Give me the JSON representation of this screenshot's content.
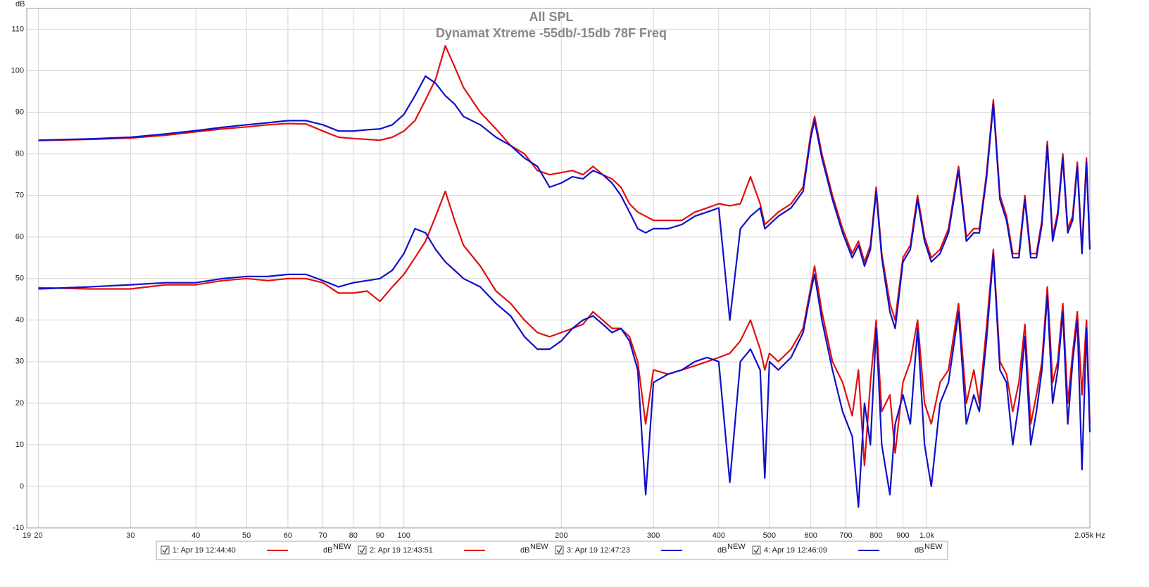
{
  "chart_data": {
    "type": "line",
    "title": "All SPL",
    "subtitle": "Dynamat Xtreme -55db/-15db 78F Freq",
    "y_label": "dB",
    "log_x": true,
    "grid": true,
    "legend": "bottom",
    "legend_unit": "dB",
    "legend_badge": "NEW",
    "xlim": [
      19,
      2050
    ],
    "ylim": [
      -10,
      115
    ],
    "xticks": [
      19,
      20,
      30,
      40,
      50,
      60,
      70,
      80,
      90,
      100,
      200,
      300,
      400,
      500,
      600,
      700,
      800,
      900,
      {
        "value": 1000,
        "label": "1.0k"
      },
      {
        "value": 2050,
        "label": "2.05k Hz"
      }
    ],
    "yticks": [
      -10,
      0,
      10,
      20,
      30,
      40,
      50,
      60,
      70,
      80,
      90,
      100,
      110
    ],
    "x": [
      20,
      25,
      30,
      35,
      40,
      45,
      50,
      55,
      60,
      65,
      70,
      75,
      80,
      85,
      90,
      95,
      100,
      105,
      110,
      115,
      120,
      125,
      130,
      140,
      150,
      160,
      170,
      180,
      190,
      200,
      210,
      220,
      230,
      240,
      250,
      260,
      270,
      280,
      290,
      300,
      320,
      340,
      360,
      380,
      400,
      420,
      440,
      460,
      480,
      490,
      500,
      520,
      550,
      580,
      600,
      610,
      630,
      660,
      690,
      720,
      740,
      760,
      780,
      800,
      820,
      850,
      870,
      900,
      930,
      960,
      990,
      1020,
      1060,
      1100,
      1150,
      1190,
      1230,
      1260,
      1300,
      1340,
      1380,
      1420,
      1460,
      1500,
      1540,
      1580,
      1620,
      1660,
      1700,
      1740,
      1780,
      1820,
      1860,
      1900,
      1940,
      1980,
      2020,
      2050
    ],
    "series": [
      {
        "name": "1: Apr 19 12:44:40",
        "color": "#e01010",
        "values": [
          83.2,
          83.5,
          83.8,
          84.5,
          85.3,
          86,
          86.5,
          87,
          87.3,
          87.2,
          85.5,
          84,
          83.7,
          83.5,
          83.3,
          84,
          85.5,
          88,
          93,
          98,
          106,
          101,
          96,
          90,
          86,
          82,
          80,
          76,
          75,
          75.5,
          76,
          75,
          77,
          75,
          74,
          72,
          68,
          66,
          65,
          64,
          64,
          64,
          66,
          67,
          68,
          67.5,
          68,
          74.5,
          68,
          63,
          64,
          66,
          68,
          72,
          85,
          89,
          80,
          70,
          62,
          56,
          59,
          54,
          58,
          72,
          56,
          44,
          40,
          55,
          58,
          70,
          60,
          55,
          57,
          62,
          77,
          60,
          62,
          62,
          75,
          93,
          70,
          65,
          56,
          56,
          70,
          56,
          56,
          64,
          83,
          60,
          66,
          80,
          62,
          65,
          78,
          57,
          79,
          57
        ]
      },
      {
        "name": "2: Apr 19 12:43:51",
        "color": "#e01010",
        "values": [
          47.8,
          47.5,
          47.5,
          48.5,
          48.5,
          49.5,
          50,
          49.5,
          50,
          50,
          49,
          46.5,
          46.5,
          47,
          44.5,
          48,
          51,
          55,
          59,
          65,
          71,
          64,
          58,
          53,
          47,
          44,
          40,
          37,
          36,
          37,
          38,
          39,
          42,
          40,
          38,
          38,
          36,
          30,
          15,
          28,
          27,
          28,
          29,
          30,
          31,
          32,
          35,
          40,
          33,
          28,
          32,
          30,
          33,
          38,
          48,
          53,
          42,
          30,
          25,
          17,
          28,
          5,
          25,
          40,
          18,
          22,
          8,
          25,
          30,
          40,
          20,
          15,
          25,
          28,
          44,
          20,
          28,
          20,
          38,
          57,
          30,
          27,
          18,
          25,
          39,
          15,
          22,
          30,
          48,
          25,
          30,
          44,
          20,
          32,
          42,
          22,
          40,
          15
        ]
      },
      {
        "name": "3: Apr 19 12:47:23",
        "color": "#1010c8",
        "values": [
          83.3,
          83.6,
          84,
          84.8,
          85.6,
          86.4,
          87,
          87.5,
          88,
          88,
          87,
          85.5,
          85.5,
          85.8,
          86,
          87,
          89.5,
          94,
          98.7,
          97,
          94,
          92,
          89,
          87,
          84,
          82,
          79,
          77,
          72,
          73,
          74.5,
          74,
          76,
          75,
          73,
          70,
          66,
          62,
          61,
          62,
          62,
          63,
          65,
          66,
          67,
          40,
          62,
          65,
          67,
          62,
          63,
          65,
          67,
          71,
          84,
          88,
          79,
          69,
          61,
          55,
          58,
          53,
          57,
          71,
          55,
          42,
          38,
          54,
          57,
          69,
          59,
          54,
          56,
          61,
          76,
          59,
          61,
          61,
          74,
          92,
          69,
          64,
          55,
          55,
          69,
          55,
          55,
          63,
          82,
          59,
          65,
          79,
          61,
          64,
          77,
          56,
          78,
          57
        ]
      },
      {
        "name": "4: Apr 19 12:46:09",
        "color": "#1010c8",
        "values": [
          47.5,
          48,
          48.5,
          49,
          49,
          50,
          50.5,
          50.5,
          51,
          51,
          49.5,
          48,
          49,
          49.5,
          50,
          52,
          56,
          62,
          61,
          57,
          54,
          52,
          50,
          48,
          44,
          41,
          36,
          33,
          33,
          35,
          38,
          40,
          41,
          39,
          37,
          38,
          35,
          28,
          -2,
          25,
          27,
          28,
          30,
          31,
          30,
          1,
          30,
          33,
          28,
          2,
          30,
          28,
          31,
          37,
          47,
          51,
          40,
          28,
          18,
          12,
          -5,
          20,
          10,
          38,
          10,
          -2,
          15,
          22,
          15,
          38,
          10,
          0,
          20,
          25,
          42,
          15,
          22,
          18,
          35,
          56,
          28,
          25,
          10,
          20,
          36,
          10,
          18,
          28,
          46,
          20,
          28,
          42,
          15,
          30,
          40,
          4,
          38,
          13
        ]
      }
    ]
  }
}
